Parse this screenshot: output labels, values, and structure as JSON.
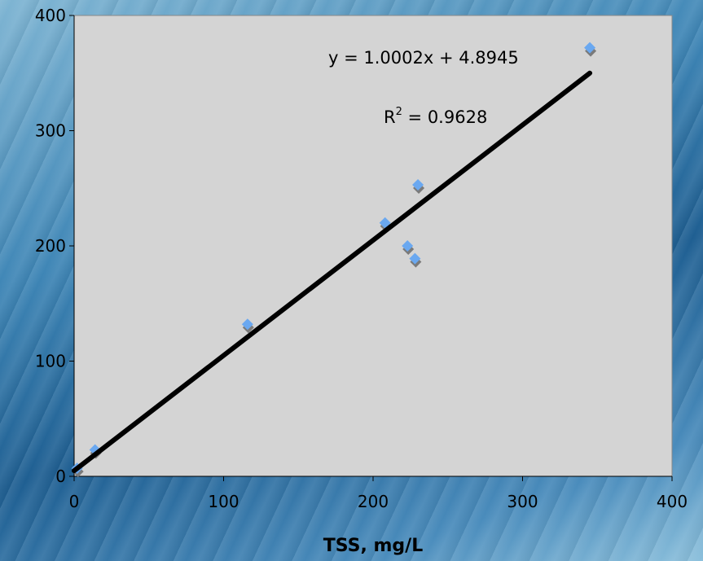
{
  "chart_data": {
    "type": "scatter",
    "title": "",
    "xlabel": "TSS, mg/L",
    "ylabel": "",
    "xlim": [
      0,
      400
    ],
    "ylim": [
      0,
      400
    ],
    "xticks": [
      "0",
      "100",
      "200",
      "300",
      "400"
    ],
    "yticks": [
      "0",
      "100",
      "200",
      "300",
      "400"
    ],
    "grid": false,
    "plot_background": "#d4d4d4",
    "series": [
      {
        "color": "#6aa8f0",
        "points": [
          {
            "x": 2,
            "y": 7
          },
          {
            "x": 14,
            "y": 23
          },
          {
            "x": 116,
            "y": 132
          },
          {
            "x": 208,
            "y": 220
          },
          {
            "x": 223,
            "y": 200
          },
          {
            "x": 228,
            "y": 189
          },
          {
            "x": 230,
            "y": 253
          },
          {
            "x": 345,
            "y": 372
          }
        ]
      }
    ],
    "trendline": {
      "slope": 1.0002,
      "intercept": 4.8945,
      "x_range": [
        0,
        345
      ],
      "color": "#000000"
    },
    "annotations": {
      "equation": "y = 1.0002x + 4.8945",
      "r2_prefix": "R",
      "r2_sup": "2",
      "r2_value": " = 0.9628"
    }
  }
}
